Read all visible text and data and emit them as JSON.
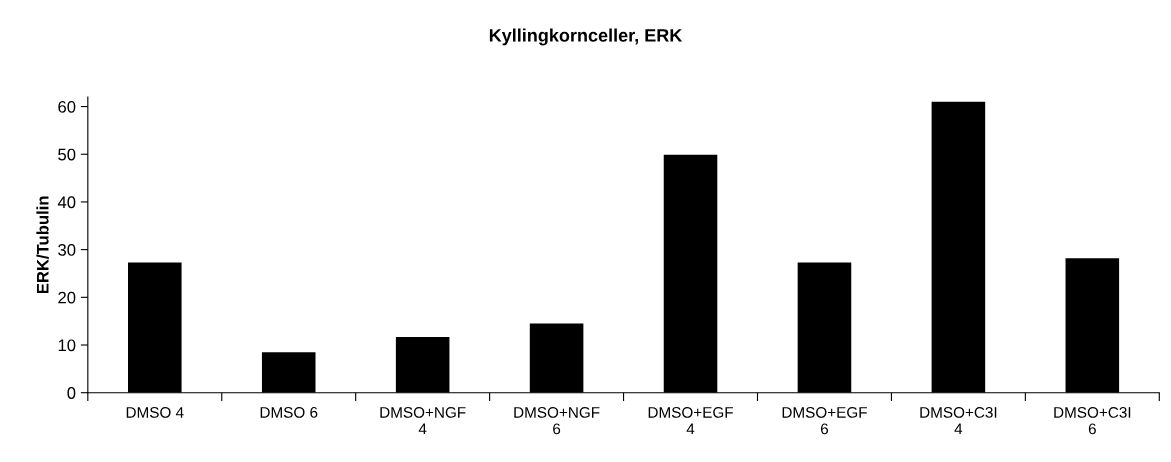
{
  "chart_data": {
    "type": "bar",
    "title": "Kyllingkornceller, ERK",
    "ylabel": "ERK/Tubulin",
    "categories": [
      "DMSO 4",
      "DMSO 6",
      "DMSO+NGF\n4",
      "DMSO+NGF\n6",
      "DMSO+EGF\n4",
      "DMSO+EGF\n6",
      "DMSO+C3I\n4",
      "DMSO+C3I\n6"
    ],
    "values": [
      27.3,
      8.5,
      11.7,
      14.5,
      49.9,
      27.3,
      61.0,
      28.2
    ],
    "color": "#000000",
    "ylim": [
      0,
      62
    ],
    "yticks": [
      0,
      10,
      20,
      30,
      40,
      50,
      60
    ],
    "grid": false,
    "legend": false
  }
}
